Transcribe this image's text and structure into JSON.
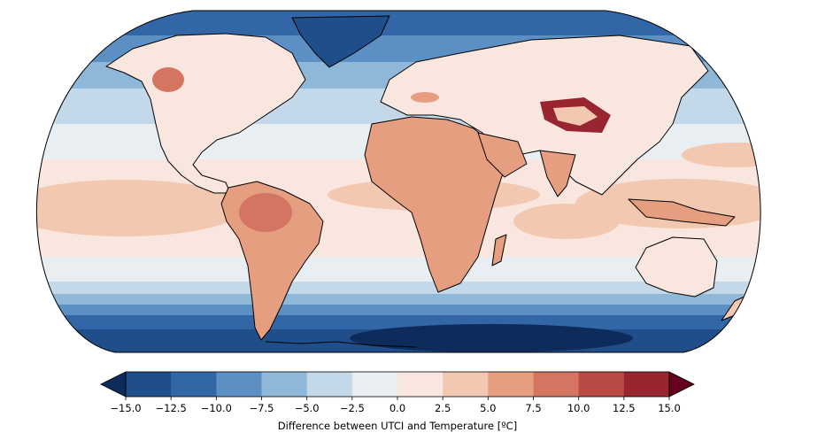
{
  "map": {
    "projection": "robinson",
    "field": "Difference between UTCI and air temperature",
    "coastline_color": "#000000"
  },
  "colorbar": {
    "label": "Difference between UTCI and Temperature [ºC]",
    "ticks": [
      "−15.0",
      "−12.5",
      "−10.0",
      "−7.5",
      "−5.0",
      "−2.5",
      "0.0",
      "2.5",
      "5.0",
      "7.5",
      "10.0",
      "12.5",
      "15.0"
    ],
    "colors": [
      "#1f4e8a",
      "#3266a6",
      "#5c8fc4",
      "#8fb8d8",
      "#c3d8e8",
      "#e9eef3",
      "#f8e6df",
      "#f3c8b1",
      "#e69e80",
      "#d37561",
      "#ba4a44",
      "#982530"
    ],
    "extend_low_color": "#0d2b5b",
    "extend_high_color": "#67001f"
  }
}
